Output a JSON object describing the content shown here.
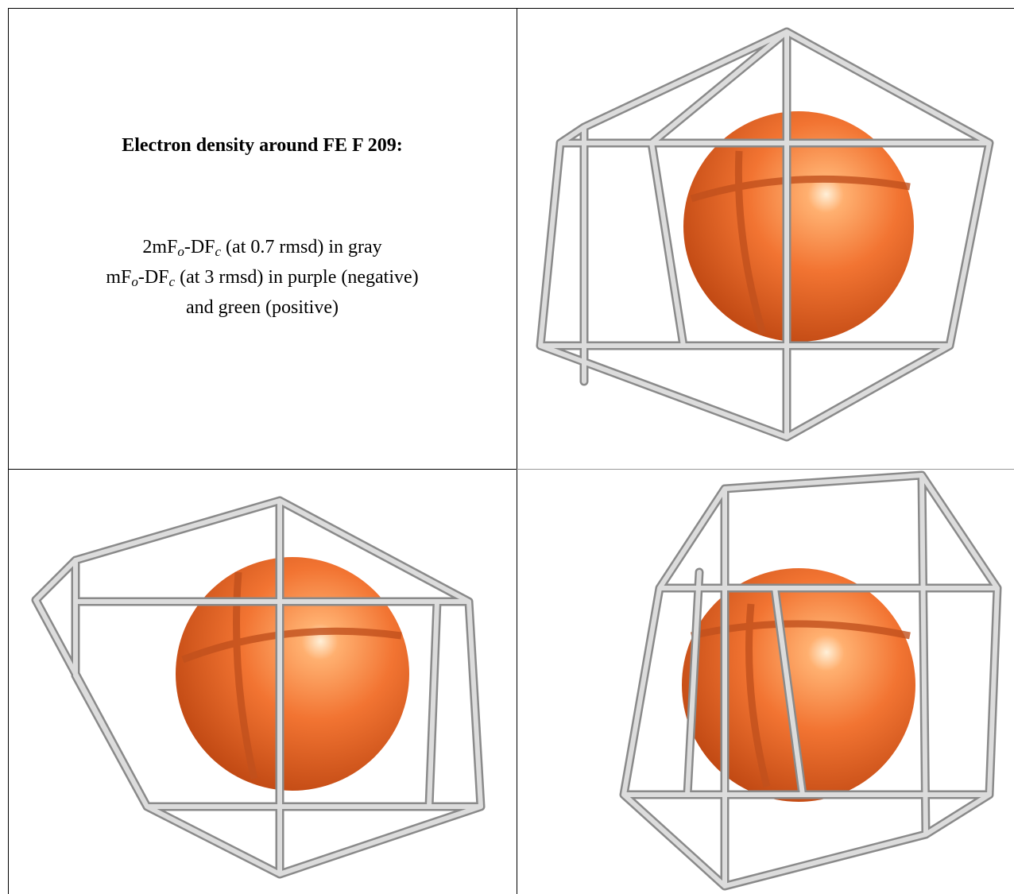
{
  "caption": {
    "title": "Electron density around FE F 209:",
    "lines": [
      [
        "2mF",
        "o",
        "-DF",
        "c",
        " (at 0.7 rmsd) in gray"
      ],
      [
        "mF",
        "o",
        "-DF",
        "c",
        " (at 3 rmsd) in purple (negative)"
      ],
      [
        "and green (positive)"
      ]
    ]
  }
}
